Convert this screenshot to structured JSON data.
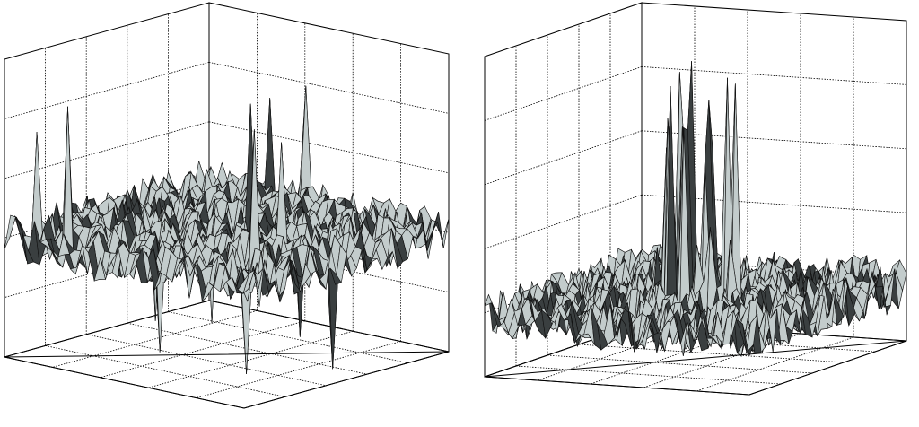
{
  "chart_data": [
    {
      "type": "surface",
      "grid": true
    },
    {
      "type": "surface",
      "grid": true
    }
  ]
}
